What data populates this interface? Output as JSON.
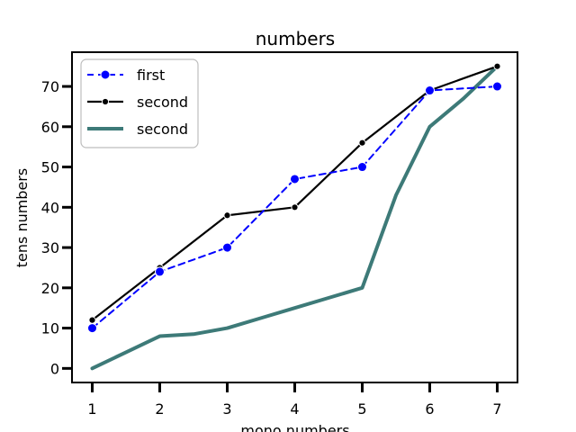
{
  "chart_data": {
    "type": "line",
    "title": "numbers",
    "xlabel": "mono numbers",
    "ylabel": "tens numbers",
    "x": [
      1,
      2,
      3,
      4,
      5,
      6,
      7
    ],
    "xticks": [
      1,
      2,
      3,
      4,
      5,
      6,
      7
    ],
    "yticks": [
      0,
      10,
      20,
      30,
      40,
      50,
      60,
      70
    ],
    "xlim": [
      0.7,
      7.3
    ],
    "ylim": [
      -3.5,
      78.5
    ],
    "grid": false,
    "legend_position": "top-left",
    "series": [
      {
        "name": "first",
        "style": "dashed-markers",
        "color": "#0000ff",
        "x": [
          1,
          2,
          3,
          4,
          5,
          6,
          7
        ],
        "values": [
          10,
          24,
          30,
          47,
          50,
          69,
          70
        ]
      },
      {
        "name": "second",
        "style": "solid-small-markers",
        "color": "#000000",
        "x": [
          1,
          2,
          3,
          4,
          5,
          6,
          7
        ],
        "values": [
          12,
          25,
          38,
          40,
          56,
          69,
          75
        ]
      },
      {
        "name": "second",
        "style": "thick-line",
        "color": "#3d7a78",
        "x": [
          1,
          1.5,
          2,
          2.5,
          3,
          3.5,
          4,
          4.5,
          5,
          5.5,
          6,
          6.5,
          7
        ],
        "values": [
          0,
          4,
          8,
          8.5,
          10,
          12.5,
          15,
          17.5,
          20,
          43,
          60,
          67,
          75
        ]
      }
    ]
  }
}
